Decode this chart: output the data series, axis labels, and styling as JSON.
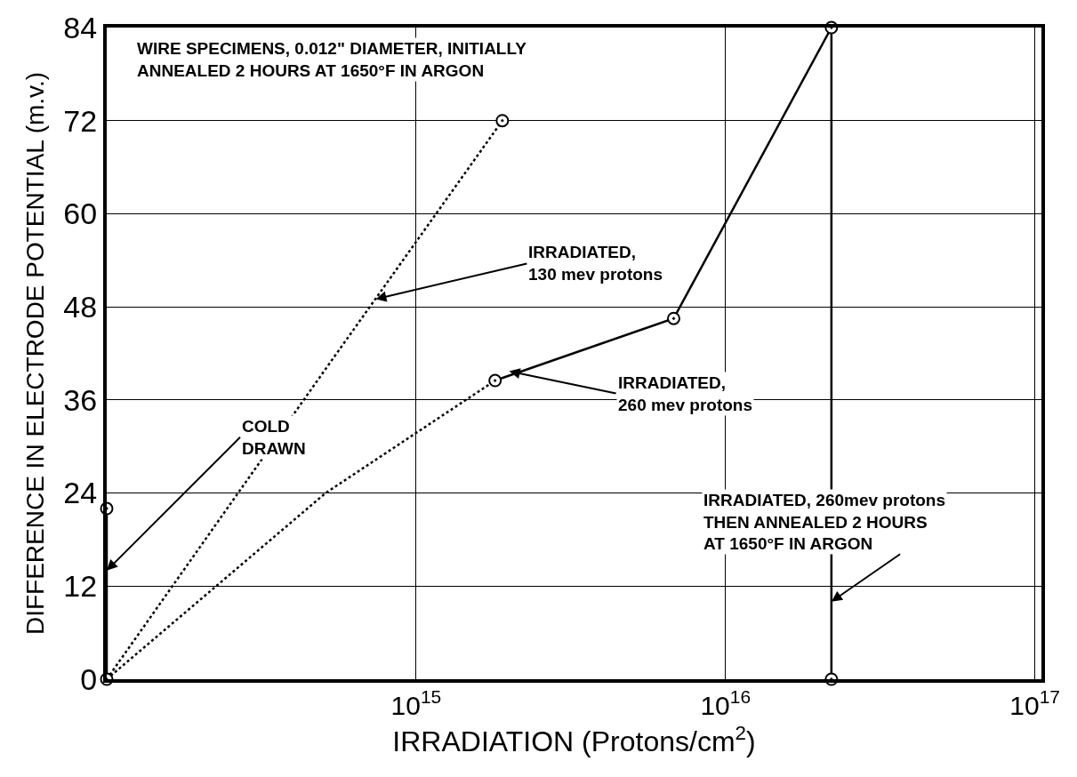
{
  "chart_data": {
    "type": "line",
    "xlabel": "IRRADIATION (Protons/cm$^{2}$)",
    "ylabel": "DIFFERENCE IN ELECTRODE POTENTIAL (m.v.)",
    "log": "x",
    "xlim": [
      100000000000000.0,
      1.05e+17
    ],
    "xticks": [
      {
        "value": 1000000000000000.0,
        "label": "10$^{15}$"
      },
      {
        "value": 1e+16,
        "label": "10$^{16}$"
      },
      {
        "value": 1e+17,
        "label": "10$^{17}$"
      }
    ],
    "ylim": [
      0,
      84
    ],
    "yticks": [
      0,
      12,
      24,
      36,
      48,
      60,
      72,
      84
    ],
    "grid": true,
    "series": [
      {
        "color": "#000000",
        "line_style": "dotted",
        "marker": "none",
        "x": [
          100000000000000.0,
          510000000000000.0,
          1900000000000000.0
        ],
        "values": [
          0,
          40,
          72
        ]
      },
      {
        "color": "#000000",
        "line_style": "dotted",
        "marker": "none",
        "x": [
          100000000000000.0,
          510000000000000.0,
          1800000000000000.0
        ],
        "values": [
          0,
          24,
          38.5
        ]
      },
      {
        "color": "#000000",
        "line_style": "solid",
        "marker": "none",
        "x": [
          1800000000000000.0,
          6800000000000000.0,
          2.2e+16
        ],
        "values": [
          38.5,
          46.5,
          84
        ]
      },
      {
        "color": "#000000",
        "line_style": "solid",
        "marker": "none",
        "x": [
          2.2e+16,
          2.2e+16
        ],
        "values": [
          84,
          0
        ]
      },
      {
        "color": "#000000",
        "line_style": "solid",
        "marker": "none",
        "x": [
          100000000000000.0,
          100000000000000.0
        ],
        "values": [
          0,
          22
        ]
      },
      {
        "type": "scatter",
        "color": "#000000",
        "marker": "circle",
        "x": [
          100000000000000.0,
          100000000000000.0,
          1900000000000000.0,
          1800000000000000.0,
          6800000000000000.0,
          2.2e+16,
          2.2e+16
        ],
        "values": [
          0,
          22,
          72,
          38.5,
          46.5,
          84,
          0
        ]
      }
    ],
    "annotations": [
      "WIRE SPECIMENS, 0.012\" DIAMETER, INITIALLY\nANNEALED 2 HOURS AT 1650°F IN ARGON",
      {
        "text": "IRRADIATED,\n130 mev protons",
        "x": 740000000000000.0,
        "y": 49
      },
      {
        "text": "IRRADIATED,\n260 mev protons",
        "x": 2000000000000000.0,
        "y": 39.7
      },
      {
        "text": "COLD\nDRAWN",
        "x": 100000000000000.0,
        "y": 14
      },
      {
        "text": "IRRADIATED, 260mev protons\nTHEN ANNEALED 2 HOURS\nAT 1650°F IN ARGON",
        "x": 2.2e+16,
        "y": 10
      }
    ]
  }
}
